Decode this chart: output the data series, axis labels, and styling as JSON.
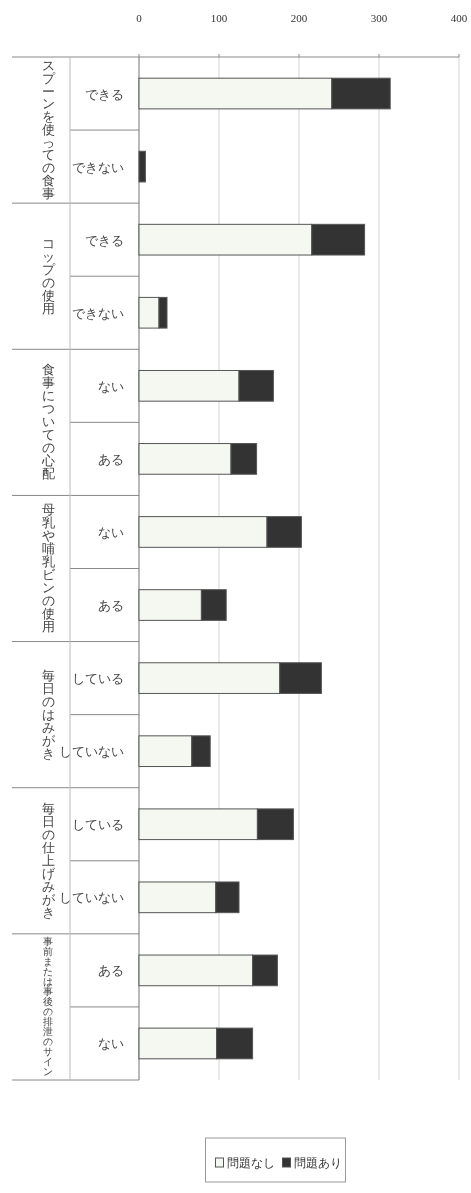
{
  "chart_data": {
    "type": "bar",
    "orientation": "horizontal",
    "stacked": true,
    "categories": [
      "できる",
      "できない",
      "できる",
      "できない",
      "ない",
      "ある",
      "ない",
      "ある",
      "している",
      "していない",
      "している",
      "していない",
      "ある",
      "ない"
    ],
    "series": [
      {
        "name": "問題なし",
        "color": "#f4f8f0",
        "values": [
          241,
          0,
          216,
          25,
          125,
          115,
          160,
          78,
          176,
          66,
          148,
          96,
          142,
          97
        ]
      },
      {
        "name": "問題あり",
        "color": "#333333",
        "values": [
          73,
          8,
          66,
          10,
          43,
          32,
          43,
          31,
          52,
          23,
          45,
          29,
          31,
          45
        ]
      }
    ],
    "annotations": [
      "スプーンを使っての食事",
      "コップの使用",
      "食事についての心配",
      "母乳や哺乳ビンの使用",
      "毎日のはみがき",
      "毎日の仕上げみがき",
      "事前または事後の排泄のサイン"
    ],
    "xlim": [
      0,
      400
    ],
    "xticks": [
      0,
      100,
      200,
      300,
      400
    ],
    "grid": "x",
    "legend": "bottom"
  }
}
